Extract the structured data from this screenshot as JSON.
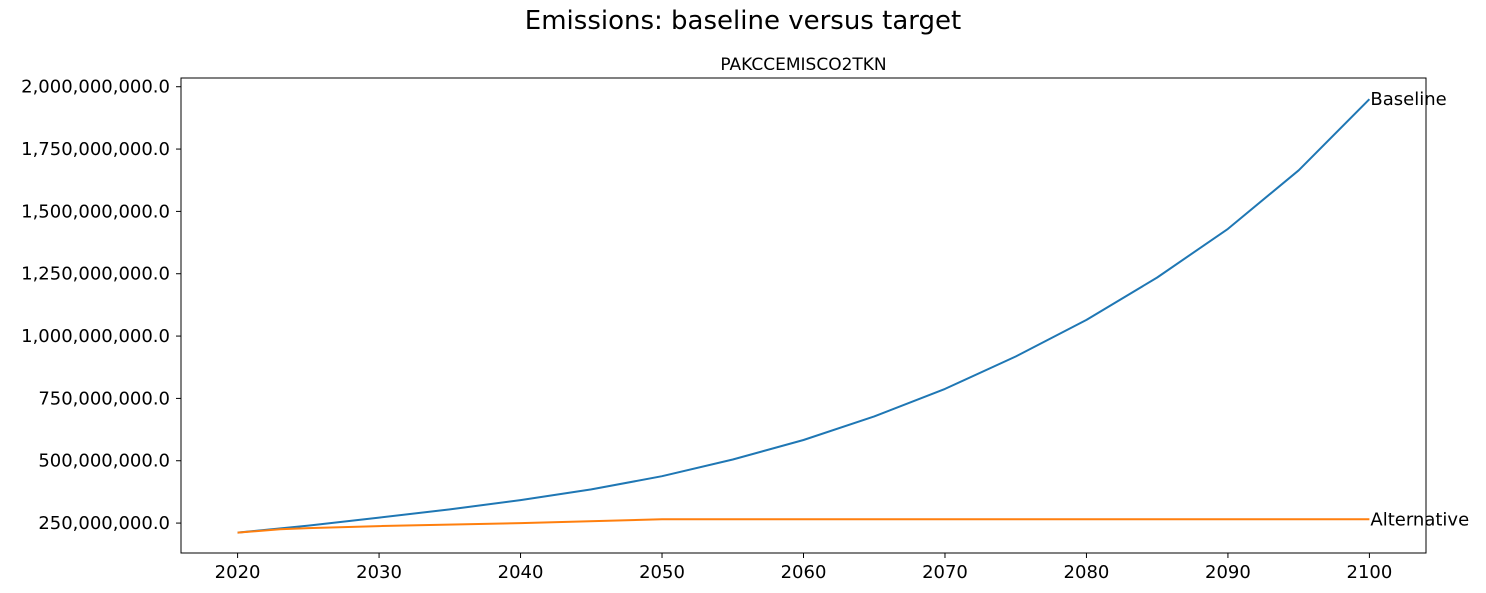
{
  "figure": {
    "suptitle": "Emissions: baseline versus target"
  },
  "chart_data": {
    "type": "line",
    "title": "PAKCCEMISCO2TKN",
    "xlabel": "",
    "ylabel": "",
    "xlim": [
      2016,
      2104
    ],
    "ylim": [
      130000000,
      2035000000
    ],
    "x_ticks": [
      2020,
      2030,
      2040,
      2050,
      2060,
      2070,
      2080,
      2090,
      2100
    ],
    "x_tick_labels": [
      "2020",
      "2030",
      "2040",
      "2050",
      "2060",
      "2070",
      "2080",
      "2090",
      "2100"
    ],
    "y_ticks": [
      250000000,
      500000000,
      750000000,
      1000000000,
      1250000000,
      1500000000,
      1750000000,
      2000000000
    ],
    "y_tick_labels": [
      "250,000,000.0",
      "500,000,000.0",
      "750,000,000.0",
      "1,000,000,000.0",
      "1,250,000,000.0",
      "1,500,000,000.0",
      "1,750,000,000.0",
      "2,000,000,000.0"
    ],
    "grid": false,
    "legend": "none",
    "series": [
      {
        "name": "Baseline",
        "color": "#1f77b4",
        "x": [
          2020,
          2025,
          2030,
          2035,
          2040,
          2045,
          2050,
          2055,
          2060,
          2065,
          2070,
          2075,
          2080,
          2085,
          2090,
          2095,
          2100
        ],
        "values": [
          212000000,
          240000000,
          272000000,
          305000000,
          342000000,
          385000000,
          438000000,
          505000000,
          583000000,
          678000000,
          788000000,
          918000000,
          1065000000,
          1235000000,
          1430000000,
          1665000000,
          1950000000
        ]
      },
      {
        "name": "Alternative",
        "color": "#ff7f0e",
        "x": [
          2020,
          2023,
          2025,
          2030,
          2040,
          2050,
          2060,
          2070,
          2080,
          2090,
          2100
        ],
        "values": [
          212000000,
          225000000,
          230000000,
          238000000,
          250000000,
          265000000,
          265000000,
          265000000,
          265000000,
          265000000,
          265000000
        ]
      }
    ]
  }
}
